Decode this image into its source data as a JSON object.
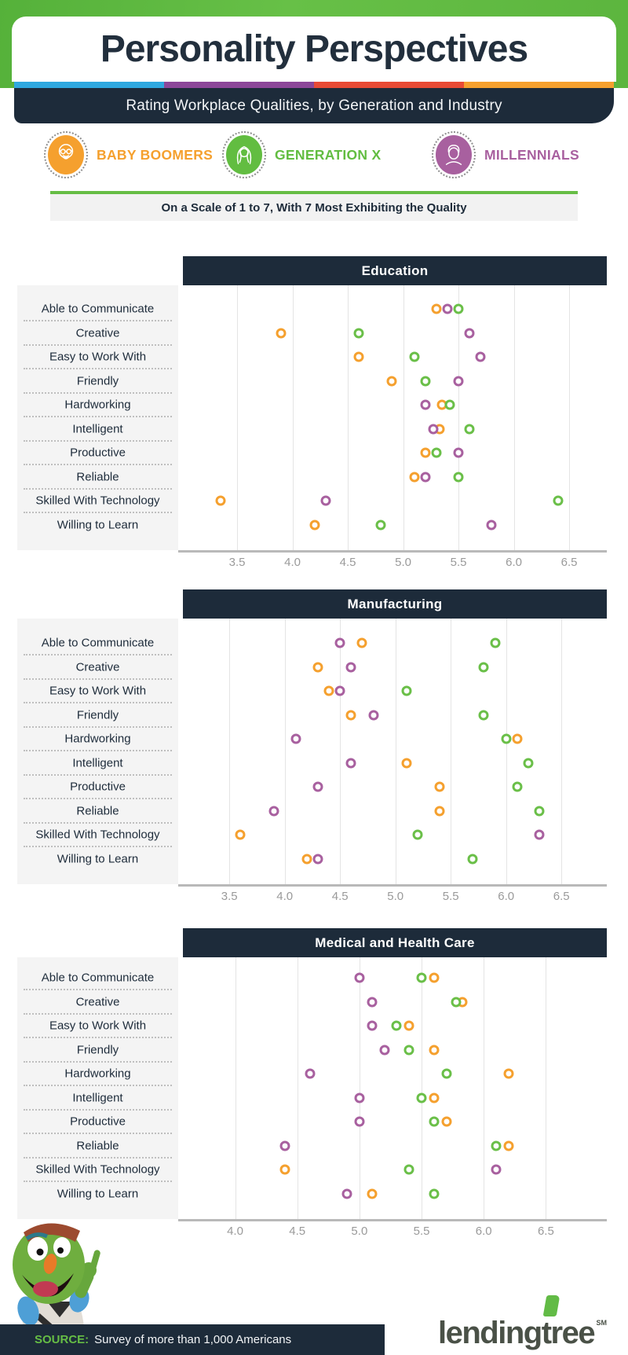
{
  "header": {
    "title": "Personality Perspectives",
    "subtitle": "Rating Workplace Qualities, by Generation and Industry"
  },
  "stripe_colors": [
    "#2fa8df",
    "#8c4799",
    "#e84b35",
    "#f5a02e"
  ],
  "legend": [
    {
      "id": "baby-boomers",
      "label": "BABY BOOMERS",
      "color": "#f5a02e"
    },
    {
      "id": "generation-x",
      "label": "GENERATION X",
      "color": "#62bd41"
    },
    {
      "id": "millennials",
      "label": "MILLENNIALS",
      "color": "#a8609f"
    }
  ],
  "scale_note": "On a Scale of 1 to 7, With 7 Most Exhibiting the Quality",
  "chart_data": [
    {
      "type": "scatter",
      "title": "Education",
      "axis_min": 3.01,
      "axis_max": 6.84,
      "ticks": [
        3.5,
        4.0,
        4.5,
        5.0,
        5.5,
        6.0,
        6.5
      ],
      "grid": true,
      "legend_position": "top",
      "categories": [
        "Able to Communicate",
        "Creative",
        "Easy to Work With",
        "Friendly",
        "Hardworking",
        "Intelligent",
        "Productive",
        "Reliable",
        "Skilled With Technology",
        "Willing to Learn"
      ],
      "series": [
        {
          "name": "Baby Boomers",
          "color": "#f5a02e",
          "values": [
            5.3,
            3.9,
            4.6,
            4.9,
            5.35,
            5.33,
            5.2,
            5.1,
            3.35,
            4.2
          ]
        },
        {
          "name": "Generation X",
          "color": "#6abf48",
          "values": [
            5.5,
            4.6,
            5.1,
            5.2,
            5.42,
            5.6,
            5.3,
            5.5,
            6.4,
            4.8
          ]
        },
        {
          "name": "Millennials",
          "color": "#a8609f",
          "values": [
            5.4,
            5.6,
            5.7,
            5.5,
            5.2,
            5.27,
            5.5,
            5.2,
            4.3,
            5.8
          ]
        }
      ]
    },
    {
      "type": "scatter",
      "title": "Manufacturing",
      "axis_min": 3.08,
      "axis_max": 6.91,
      "ticks": [
        3.5,
        4.0,
        4.5,
        5.0,
        5.5,
        6.0,
        6.5
      ],
      "grid": true,
      "legend_position": "top",
      "categories": [
        "Able to Communicate",
        "Creative",
        "Easy to Work With",
        "Friendly",
        "Hardworking",
        "Intelligent",
        "Productive",
        "Reliable",
        "Skilled With Technology",
        "Willing to Learn"
      ],
      "series": [
        {
          "name": "Baby Boomers",
          "color": "#f5a02e",
          "values": [
            4.7,
            4.3,
            4.4,
            4.6,
            6.1,
            5.1,
            5.4,
            5.4,
            3.6,
            4.2
          ]
        },
        {
          "name": "Generation X",
          "color": "#6abf48",
          "values": [
            5.9,
            5.8,
            5.1,
            5.8,
            6.0,
            6.2,
            6.1,
            6.3,
            5.2,
            5.7
          ]
        },
        {
          "name": "Millennials",
          "color": "#a8609f",
          "values": [
            4.5,
            4.6,
            4.5,
            4.8,
            4.1,
            4.6,
            4.3,
            3.9,
            6.3,
            4.3
          ]
        }
      ]
    },
    {
      "type": "scatter",
      "title": "Medical and Health Care",
      "axis_min": 3.58,
      "axis_max": 6.99,
      "ticks": [
        4.0,
        4.5,
        5.0,
        5.5,
        6.0,
        6.5
      ],
      "grid": true,
      "legend_position": "top",
      "categories": [
        "Able to Communicate",
        "Creative",
        "Easy to Work With",
        "Friendly",
        "Hardworking",
        "Intelligent",
        "Productive",
        "Reliable",
        "Skilled With Technology",
        "Willing to Learn"
      ],
      "series": [
        {
          "name": "Baby Boomers",
          "color": "#f5a02e",
          "values": [
            5.6,
            5.83,
            5.4,
            5.6,
            6.2,
            5.6,
            5.7,
            6.2,
            4.4,
            5.1
          ]
        },
        {
          "name": "Generation X",
          "color": "#6abf48",
          "values": [
            5.5,
            5.78,
            5.3,
            5.4,
            5.7,
            5.5,
            5.6,
            6.1,
            5.4,
            5.6
          ]
        },
        {
          "name": "Millennials",
          "color": "#a8609f",
          "values": [
            5.0,
            5.1,
            5.1,
            5.2,
            4.6,
            5.0,
            5.0,
            4.4,
            6.1,
            4.9
          ]
        }
      ]
    }
  ],
  "footer": {
    "source_label": "SOURCE:",
    "source_text": "Survey of more than 1,000 Americans",
    "logo_text": "lendingtree",
    "logo_tm": "SM"
  }
}
